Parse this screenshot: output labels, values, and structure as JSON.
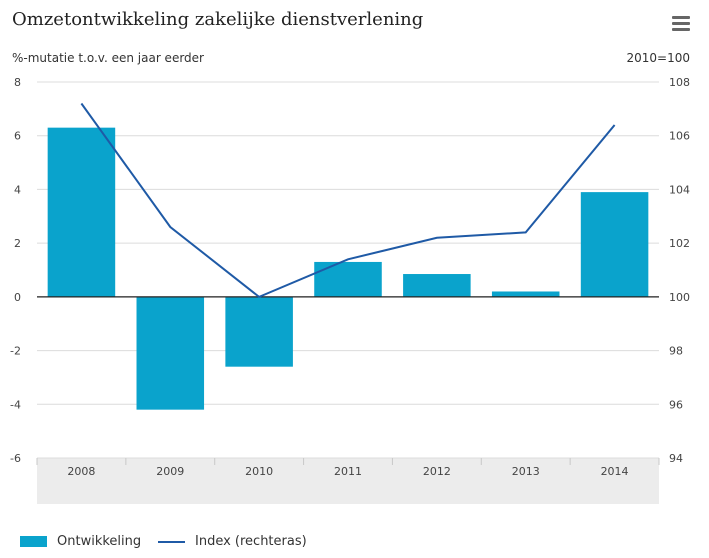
{
  "title": "Omzetontwikkeling zakelijke dienstverlening",
  "menu": {
    "icon": "hamburger-menu-icon"
  },
  "colors": {
    "bar": "#0aa3cc",
    "line": "#1f5aa6",
    "grid": "#dcdcdc",
    "zero": "#222222",
    "category_band": "#ececec"
  },
  "chart_data": {
    "type": "bar",
    "categories": [
      "2008",
      "2009",
      "2010",
      "2011",
      "2012",
      "2013",
      "2014"
    ],
    "series": [
      {
        "name": "Ontwikkeling",
        "type": "bar",
        "axis": "left",
        "values": [
          6.3,
          -4.2,
          -2.6,
          1.3,
          0.85,
          0.2,
          3.9
        ]
      },
      {
        "name": "Index (rechteras)",
        "type": "line",
        "axis": "right",
        "values": [
          107.2,
          102.6,
          100.0,
          101.4,
          102.2,
          102.4,
          106.4
        ]
      }
    ],
    "ylabel": "%-mutatie t.o.v. een jaar eerder",
    "ylabel_right": "2010=100",
    "ylim": [
      -6,
      8
    ],
    "ylim_right": [
      94,
      108
    ],
    "yticks": [
      "8",
      "6",
      "4",
      "2",
      "0",
      "-2",
      "-4",
      "-6"
    ],
    "yticks_right": [
      "108",
      "106",
      "104",
      "102",
      "100",
      "98",
      "96",
      "94"
    ],
    "grid": true,
    "legend": "bottom-left"
  }
}
